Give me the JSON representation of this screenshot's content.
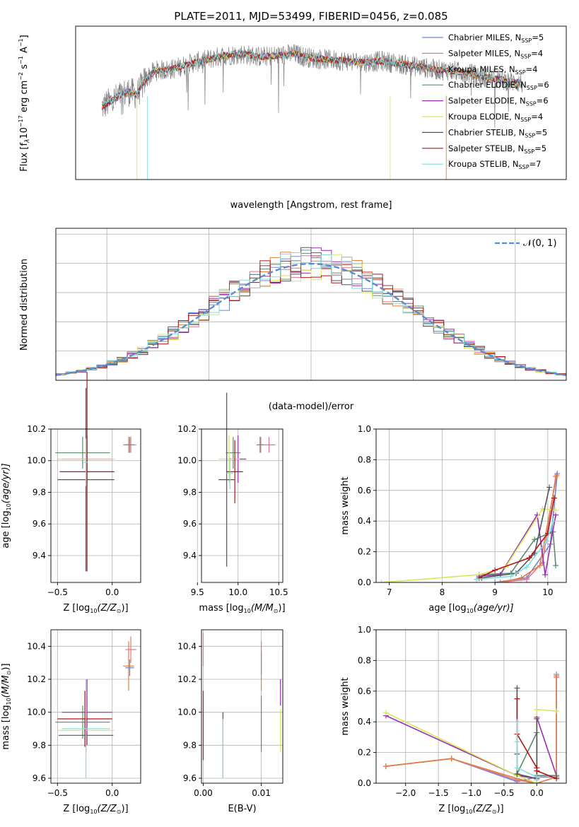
{
  "chart_data": [
    {
      "type": "line",
      "title": "PLATE=2011, MJD=53499, FIBERID=0456, z=0.085",
      "xlabel": "wavelength [Angstrom, rest frame]",
      "ylabel_main": "Flux [f",
      "ylabel_lambda": "λ",
      "ylabel_mid": "10",
      "ylabel_exp1": "−17",
      "ylabel_unit1": " erg cm",
      "ylabel_exp2": "−2",
      "ylabel_unit2": " s",
      "ylabel_exp3": "−1",
      "ylabel_unit3": " A",
      "ylabel_exp4": "−1",
      "ylabel_end": "]",
      "xlim": [
        3200,
        8800
      ],
      "ylim": [
        0,
        11
      ],
      "xticks": [
        "4000",
        "5000",
        "6000",
        "7000",
        "8000"
      ],
      "xtick_values": [
        4000,
        5000,
        6000,
        7000,
        8000
      ],
      "yticks": [
        "0",
        "2",
        "4",
        "6",
        "8",
        "10"
      ],
      "ytick_values": [
        0,
        2,
        4,
        6,
        8,
        10
      ],
      "legend_position": "upper-right",
      "legend": [
        {
          "name": "Chabrier MILES, N",
          "sub": "SSP",
          "suffix": "=5",
          "color": "#6b85d9"
        },
        {
          "name": "Salpeter MILES, N",
          "sub": "SSP",
          "suffix": "=4",
          "color": "#e8738c"
        },
        {
          "name": "Kroupa MILES, N",
          "sub": "SSP",
          "suffix": "=4",
          "color": "#e0803a"
        },
        {
          "name": "Chabrier ELODIE, N",
          "sub": "SSP",
          "suffix": "=6",
          "color": "#5e8a6e"
        },
        {
          "name": "Salpeter ELODIE, N",
          "sub": "SSP",
          "suffix": "=6",
          "color": "#9a2fb0"
        },
        {
          "name": "Kroupa ELODIE, N",
          "sub": "SSP",
          "suffix": "=4",
          "color": "#d8e65a"
        },
        {
          "name": "Chabrier STELIB, N",
          "sub": "SSP",
          "suffix": "=5",
          "color": "#555555"
        },
        {
          "name": "Salpeter STELIB, N",
          "sub": "SSP",
          "suffix": "=5",
          "color": "#b01818"
        },
        {
          "name": "Kroupa STELIB, N",
          "sub": "SSP",
          "suffix": "=7",
          "color": "#7fdde0"
        }
      ],
      "data_color": "#808080",
      "model_points": [
        [
          3500,
          5.2
        ],
        [
          3600,
          5.6
        ],
        [
          3700,
          6.0
        ],
        [
          3800,
          6.3
        ],
        [
          3900,
          6.1
        ],
        [
          4000,
          7.2
        ],
        [
          4100,
          7.8
        ],
        [
          4300,
          7.9
        ],
        [
          4500,
          8.3
        ],
        [
          4700,
          8.6
        ],
        [
          4900,
          8.9
        ],
        [
          5100,
          9.0
        ],
        [
          5300,
          8.8
        ],
        [
          5500,
          8.9
        ],
        [
          5700,
          9.0
        ],
        [
          5900,
          8.7
        ],
        [
          6100,
          8.6
        ],
        [
          6300,
          8.5
        ],
        [
          6500,
          8.4
        ],
        [
          6700,
          8.5
        ],
        [
          6900,
          8.3
        ],
        [
          7100,
          8.1
        ],
        [
          7300,
          7.9
        ],
        [
          7500,
          7.8
        ],
        [
          7700,
          7.6
        ],
        [
          7900,
          7.3
        ],
        [
          8100,
          7.1
        ],
        [
          8300,
          6.9
        ]
      ]
    },
    {
      "type": "line",
      "xlabel": "(data-model)/error",
      "ylabel": "Normed distribution",
      "xlim": [
        -2.5,
        2.5
      ],
      "ylim": [
        0,
        0.52
      ],
      "xticks": [
        "−2",
        "−1",
        "0",
        "1",
        "2"
      ],
      "xtick_values": [
        -2,
        -1,
        0,
        1,
        2
      ],
      "yticks": [
        "0.0",
        "0.1",
        "0.2",
        "0.3",
        "0.4",
        "0.5"
      ],
      "ytick_values": [
        0,
        0.1,
        0.2,
        0.3,
        0.4,
        0.5
      ],
      "legend_label": "𝒩(0, 1)",
      "legend_position": "upper-right",
      "gauss_color": "#5b8bd6",
      "bin_width": 0.1
    },
    {
      "type": "scatter",
      "xlabel": "Z [log",
      "xlabel_sub": "10",
      "xlabel_end": "(Z/Z",
      "xlabel_sun": "⊙",
      "xlabel_close": ")]",
      "ylabel": "age  [log",
      "ylabel_sub": "10",
      "ylabel_end": "(age/yr)]",
      "xlim": [
        -0.56,
        0.26
      ],
      "ylim": [
        9.23,
        10.2
      ],
      "xticks": [
        "−0.5",
        "0.0"
      ],
      "xtick_values": [
        -0.5,
        0.0
      ],
      "yticks": [
        "9.4",
        "9.6",
        "9.8",
        "10.0",
        "10.2"
      ],
      "ytick_values": [
        9.4,
        9.6,
        9.8,
        10.0,
        10.2
      ],
      "points": [
        {
          "x": 0.17,
          "y": 10.1,
          "xerr": 0.05,
          "yerr": 0.05,
          "color": "#e8738c"
        },
        {
          "x": 0.15,
          "y": 10.1,
          "xerr": 0.05,
          "yerr": 0.05,
          "color": "#e0803a"
        },
        {
          "x": 0.16,
          "y": 10.1,
          "xerr": 0.04,
          "yerr": 0.05,
          "color": "#6b85d9"
        },
        {
          "x": -0.27,
          "y": 10.05,
          "xerr": 0.25,
          "yerr": 0.1,
          "color": "#5e8a6e"
        },
        {
          "x": -0.23,
          "y": 10.01,
          "xerr": 0.23,
          "yerr": 0.15,
          "color": "#9a2fb0"
        },
        {
          "x": -0.24,
          "y": 10.01,
          "xerr": 0.26,
          "yerr": 0.15,
          "color": "#d8e65a"
        },
        {
          "x": -0.23,
          "y": 9.93,
          "xerr": 0.25,
          "yerr": 0.63,
          "color": "#b01818"
        },
        {
          "x": -0.24,
          "y": 9.88,
          "xerr": 0.26,
          "yerr": 0.58,
          "color": "#555555"
        },
        {
          "x": -0.24,
          "y": 9.99,
          "xerr": 0.02,
          "yerr": 0.15,
          "color": "#7fdde0"
        }
      ]
    },
    {
      "type": "scatter",
      "xlabel": "mass [log",
      "xlabel_sub": "10",
      "xlabel_end": "(M/M",
      "xlabel_sun": "⊙",
      "xlabel_close": ")]",
      "xlim": [
        9.55,
        10.55
      ],
      "ylim": [
        9.23,
        10.2
      ],
      "xticks": [
        "9.5",
        "10.0",
        "10.5"
      ],
      "xtick_values": [
        9.5,
        10.0,
        10.5
      ],
      "yticks": [
        "9.4",
        "9.6",
        "9.8",
        "10.0",
        "10.2"
      ],
      "ytick_values": [
        9.4,
        9.6,
        9.8,
        10.0,
        10.2
      ],
      "points": [
        {
          "x": 10.38,
          "y": 10.1,
          "xerr": 0.08,
          "yerr": 0.05,
          "color": "#e8738c"
        },
        {
          "x": 10.28,
          "y": 10.1,
          "xerr": 0.05,
          "yerr": 0.05,
          "color": "#e0803a"
        },
        {
          "x": 10.27,
          "y": 10.1,
          "xerr": 0.04,
          "yerr": 0.05,
          "color": "#6b85d9"
        },
        {
          "x": 9.94,
          "y": 10.05,
          "xerr": 0.09,
          "yerr": 0.1,
          "color": "#5e8a6e"
        },
        {
          "x": 10.0,
          "y": 10.01,
          "xerr": 0.1,
          "yerr": 0.15,
          "color": "#9a2fb0"
        },
        {
          "x": 9.89,
          "y": 10.01,
          "xerr": 0.13,
          "yerr": 0.15,
          "color": "#d8e65a"
        },
        {
          "x": 9.96,
          "y": 9.93,
          "xerr": 0.1,
          "yerr": 0.2,
          "color": "#b01818"
        },
        {
          "x": 9.86,
          "y": 9.88,
          "xerr": 0.1,
          "yerr": 0.55,
          "color": "#555555"
        },
        {
          "x": 9.9,
          "y": 9.92,
          "xerr": 0.04,
          "yerr": 0.1,
          "color": "#7fdde0"
        }
      ]
    },
    {
      "type": "line",
      "xlabel": "age  [log",
      "xlabel_sub": "10",
      "xlabel_end": "(age/yr)]",
      "ylabel": "mass weight",
      "xlim": [
        6.75,
        10.35
      ],
      "ylim": [
        0,
        1.0
      ],
      "xticks": [
        "7",
        "8",
        "9",
        "10"
      ],
      "xtick_values": [
        7,
        8,
        9,
        10
      ],
      "yticks": [
        "0.0",
        "0.2",
        "0.4",
        "0.6",
        "0.8",
        "1.0"
      ],
      "ytick_values": [
        0,
        0.2,
        0.4,
        0.6,
        0.8,
        1.0
      ],
      "series": [
        {
          "color": "#6b85d9",
          "x": [
            9.0,
            9.6,
            10.05,
            10.18
          ],
          "y": [
            0.0,
            0.03,
            0.25,
            0.71
          ]
        },
        {
          "color": "#e8738c",
          "x": [
            9.1,
            9.6,
            9.9,
            10.15
          ],
          "y": [
            0.0,
            0.02,
            0.13,
            0.69
          ]
        },
        {
          "color": "#e0803a",
          "x": [
            9.1,
            9.5,
            9.85,
            10.17
          ],
          "y": [
            0.0,
            0.03,
            0.11,
            0.7
          ]
        },
        {
          "color": "#5e8a6e",
          "x": [
            8.7,
            9.3,
            9.75,
            10.1,
            10.15
          ],
          "y": [
            0.05,
            0.06,
            0.28,
            0.33,
            0.11
          ]
        },
        {
          "color": "#9a2fb0",
          "x": [
            8.7,
            9.1,
            9.8,
            9.95,
            10.15
          ],
          "y": [
            0.04,
            0.05,
            0.44,
            0.05,
            0.44
          ]
        },
        {
          "color": "#d8e65a",
          "x": [
            6.85,
            8.7,
            9.2,
            9.9,
            10.15
          ],
          "y": [
            0.0,
            0.05,
            0.1,
            0.48,
            0.47
          ]
        },
        {
          "color": "#555555",
          "x": [
            8.75,
            9.4,
            9.75,
            10.03
          ],
          "y": [
            0.03,
            0.06,
            0.19,
            0.62
          ]
        },
        {
          "color": "#b01818",
          "x": [
            8.7,
            9.0,
            9.65,
            10.0,
            10.12
          ],
          "y": [
            0.03,
            0.08,
            0.16,
            0.32,
            0.55
          ]
        },
        {
          "color": "#7fdde0",
          "x": [
            8.65,
            9.3,
            9.6,
            9.98,
            10.1
          ],
          "y": [
            0.02,
            0.04,
            0.1,
            0.27,
            0.4
          ]
        }
      ]
    },
    {
      "type": "scatter",
      "xlabel": "Z [log",
      "xlabel_sub": "10",
      "xlabel_end": "(Z/Z",
      "xlabel_sun": "⊙",
      "xlabel_close": ")]",
      "ylabel": "mass [log",
      "ylabel_sub": "10",
      "ylabel_end": "(M/M",
      "ylabel_sun": "⊙",
      "ylabel_close": ")]",
      "xlim": [
        -0.56,
        0.26
      ],
      "ylim": [
        9.57,
        10.5
      ],
      "xticks": [
        "−0.5",
        "0.0"
      ],
      "xtick_values": [
        -0.5,
        0.0
      ],
      "yticks": [
        "9.6",
        "9.8",
        "10.0",
        "10.2",
        "10.4"
      ],
      "ytick_values": [
        9.6,
        9.8,
        10.0,
        10.2,
        10.4
      ],
      "points": [
        {
          "x": 0.17,
          "y": 10.38,
          "xerr": 0.05,
          "yerr": 0.08,
          "color": "#e8738c"
        },
        {
          "x": 0.15,
          "y": 10.28,
          "xerr": 0.05,
          "yerr": 0.15,
          "color": "#e0803a"
        },
        {
          "x": 0.16,
          "y": 10.27,
          "xerr": 0.04,
          "yerr": 0.05,
          "color": "#6b85d9"
        },
        {
          "x": -0.27,
          "y": 9.94,
          "xerr": 0.25,
          "yerr": 0.1,
          "color": "#5e8a6e"
        },
        {
          "x": -0.23,
          "y": 10.0,
          "xerr": 0.23,
          "yerr": 0.2,
          "color": "#9a2fb0"
        },
        {
          "x": -0.24,
          "y": 9.89,
          "xerr": 0.26,
          "yerr": 0.1,
          "color": "#d8e65a"
        },
        {
          "x": -0.25,
          "y": 9.96,
          "xerr": 0.25,
          "yerr": 0.17,
          "color": "#b01818"
        },
        {
          "x": -0.24,
          "y": 9.86,
          "xerr": 0.25,
          "yerr": 0.1,
          "color": "#555555"
        },
        {
          "x": -0.24,
          "y": 9.9,
          "xerr": 0.22,
          "yerr": 0.3,
          "color": "#7fdde0"
        }
      ]
    },
    {
      "type": "scatter",
      "xlabel": "E(B-V)",
      "xlim": [
        -0.0003,
        0.0137
      ],
      "ylim": [
        9.57,
        10.5
      ],
      "xticks": [
        "0.00",
        "0.01"
      ],
      "xtick_values": [
        0.0,
        0.01
      ],
      "yticks": [
        "9.6",
        "9.8",
        "10.0",
        "10.2",
        "10.4"
      ],
      "ytick_values": [
        9.6,
        9.8,
        10.0,
        10.2,
        10.4
      ],
      "points": [
        {
          "x": 0.0,
          "y": 10.38,
          "yerr": 0.1,
          "color": "#e8738c"
        },
        {
          "x": 0.0,
          "y": 9.92,
          "yerr": 0.21,
          "color": "#b01818"
        },
        {
          "x": 0.0034,
          "y": 9.8,
          "yerr": 0.2,
          "color": "#555555"
        },
        {
          "x": 0.0034,
          "y": 9.78,
          "yerr": 0.18,
          "color": "#7fdde0"
        },
        {
          "x": 0.01,
          "y": 10.28,
          "yerr": 0.15,
          "color": "#e0803a"
        },
        {
          "x": 0.01,
          "y": 10.3,
          "yerr": 0.07,
          "color": "#6b85d9"
        },
        {
          "x": 0.01,
          "y": 9.93,
          "yerr": 0.17,
          "color": "#5e8a6e"
        },
        {
          "x": 0.0133,
          "y": 10.12,
          "yerr": 0.08,
          "color": "#9a2fb0"
        },
        {
          "x": 0.0133,
          "y": 9.89,
          "yerr": 0.13,
          "color": "#d8e65a"
        }
      ]
    },
    {
      "type": "line",
      "xlabel": "Z [log",
      "xlabel_sub": "10",
      "xlabel_end": "(Z/Z",
      "xlabel_sun": "⊙",
      "xlabel_close": ")]",
      "ylabel": "mass weight",
      "xlim": [
        -2.45,
        0.45
      ],
      "ylim": [
        0,
        1.0
      ],
      "xticks": [
        "−2.0",
        "−1.5",
        "−1.0",
        "−0.5",
        "0.0"
      ],
      "xtick_values": [
        -2.0,
        -1.5,
        -1.0,
        -0.5,
        0.0
      ],
      "yticks": [
        "0.0",
        "0.2",
        "0.4",
        "0.6",
        "0.8",
        "1.0"
      ],
      "ytick_values": [
        0,
        0.2,
        0.4,
        0.6,
        0.8,
        1.0
      ],
      "series": [
        {
          "color": "#6b85d9",
          "x": [
            -2.3,
            -1.3,
            -0.3,
            0.0,
            0.3,
            0.3
          ],
          "y": [
            0.11,
            0.16,
            0.01,
            0.04,
            0.04,
            0.71
          ]
        },
        {
          "color": "#e8738c",
          "x": [
            -2.3,
            -1.3,
            -0.3,
            0.0,
            0.3,
            0.3
          ],
          "y": [
            0.11,
            0.16,
            0.02,
            0.0,
            0.04,
            0.69
          ]
        },
        {
          "color": "#e0803a",
          "x": [
            -2.3,
            -1.3,
            -0.3,
            0.0,
            0.3,
            0.3
          ],
          "y": [
            0.11,
            0.16,
            0.03,
            0.0,
            0.04,
            0.7
          ]
        },
        {
          "color": "#9a2fb0",
          "x": [
            -2.3,
            -0.3,
            0.0,
            0.0,
            0.3
          ],
          "y": [
            0.44,
            0.05,
            0.03,
            0.43,
            0.05
          ]
        },
        {
          "color": "#d8e65a",
          "x": [
            -2.3,
            -0.3,
            0.0,
            0.0,
            0.3
          ],
          "y": [
            0.46,
            0.05,
            0.0,
            0.48,
            0.47
          ]
        },
        {
          "color": "#5e8a6e",
          "x": [
            -0.3,
            0.0,
            0.0,
            0.3
          ],
          "y": [
            0.06,
            0.33,
            0.05,
            0.05
          ]
        },
        {
          "color": "#555555",
          "x": [
            -0.3,
            -0.3,
            -0.3,
            0.0,
            0.0
          ],
          "y": [
            0.62,
            0.19,
            0.06,
            0.03,
            0.42
          ]
        },
        {
          "color": "#b01818",
          "x": [
            -0.3,
            -0.3,
            0.0,
            0.0,
            0.3
          ],
          "y": [
            0.55,
            0.32,
            0.1,
            0.08,
            0.03
          ]
        },
        {
          "color": "#7fdde0",
          "x": [
            -0.3,
            -0.3,
            -0.3,
            0.0,
            0.0
          ],
          "y": [
            0.4,
            0.27,
            0.1,
            0.04,
            0.02
          ]
        }
      ]
    }
  ]
}
